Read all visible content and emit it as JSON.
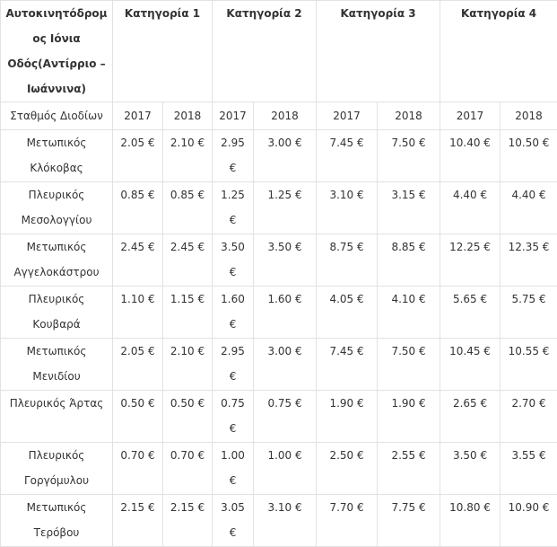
{
  "table": {
    "header": {
      "title": "Αυτοκινητόδρομος Ιόνια Οδός(Αντίρριο – Ιωάννινα)",
      "categories": [
        "Κατηγορία  1",
        "Κατηγορία 2",
        "Κατηγορία 3",
        "Κατηγορία 4"
      ]
    },
    "subheader": {
      "label": "Σταθμός Διοδίων",
      "years": [
        "2017",
        "2018",
        "2017",
        "2018",
        "2017",
        "2018",
        "2017",
        "2018"
      ]
    },
    "rows": [
      {
        "station": "Μετωπικός Κλόκοβας",
        "prices": [
          "2.05 €",
          "2.10 €",
          "2.95 €",
          "3.00 €",
          "7.45 €",
          "7.50 €",
          "10.40 €",
          "10.50 €"
        ]
      },
      {
        "station": "Πλευρικός Μεσολογγίου",
        "prices": [
          "0.85 €",
          "0.85 €",
          "1.25 €",
          "1.25 €",
          "3.10 €",
          "3.15 €",
          "4.40 €",
          "4.40 €"
        ]
      },
      {
        "station": "Μετωπικός Αγγελοκάστρου",
        "prices": [
          "2.45 €",
          "2.45 €",
          "3.50 €",
          "3.50 €",
          "8.75 €",
          "8.85 €",
          "12.25 €",
          "12.35 €"
        ]
      },
      {
        "station": "Πλευρικός Κουβαρά",
        "prices": [
          "1.10 €",
          "1.15 €",
          "1.60 €",
          "1.60 €",
          "4.05 €",
          "4.10 €",
          "5.65 €",
          "5.75 €"
        ]
      },
      {
        "station": "Μετωπικός Μενιδίου",
        "prices": [
          "2.05 €",
          "2.10 €",
          "2.95 €",
          "3.00 €",
          "7.45 €",
          "7.50 €",
          "10.45 €",
          "10.55 €"
        ]
      },
      {
        "station": "Πλευρικός Άρτας",
        "prices": [
          "0.50 €",
          "0.50 €",
          "0.75 €",
          "0.75 €",
          "1.90 €",
          "1.90 €",
          "2.65 €",
          "2.70 €"
        ]
      },
      {
        "station": "Πλευρικός Γοργόμυλου",
        "prices": [
          "0.70 €",
          "0.70 €",
          "1.00 €",
          "1.00 €",
          "2.50 €",
          "2.55 €",
          "3.50 €",
          "3.55 €"
        ]
      },
      {
        "station": "Μετωπικός Τερόβου",
        "prices": [
          "2.15 €",
          "2.15 €",
          "3.05 €",
          "3.10 €",
          "7.70 €",
          "7.75 €",
          "10.80 €",
          "10.90 €"
        ]
      }
    ]
  }
}
